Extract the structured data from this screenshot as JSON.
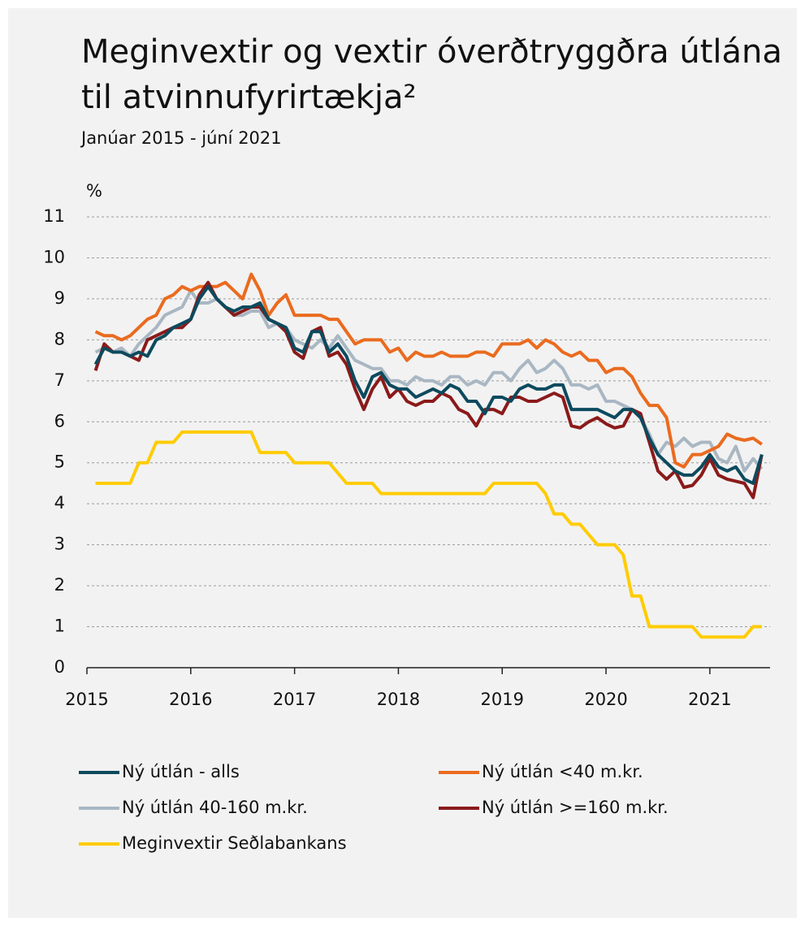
{
  "chart_data": {
    "type": "line",
    "title": "Meginvextir og vextir óverðtryggðra útlána til atvinnufyrirtækja²",
    "subtitle": "Janúar 2015 - júní 2021",
    "y_label": "%",
    "x": [
      2015.083,
      2015.167,
      2015.25,
      2015.333,
      2015.417,
      2015.5,
      2015.583,
      2015.667,
      2015.75,
      2015.833,
      2015.917,
      2016.0,
      2016.083,
      2016.167,
      2016.25,
      2016.333,
      2016.417,
      2016.5,
      2016.583,
      2016.667,
      2016.75,
      2016.833,
      2016.917,
      2017.0,
      2017.083,
      2017.167,
      2017.25,
      2017.333,
      2017.417,
      2017.5,
      2017.583,
      2017.667,
      2017.75,
      2017.833,
      2017.917,
      2018.0,
      2018.083,
      2018.167,
      2018.25,
      2018.333,
      2018.417,
      2018.5,
      2018.583,
      2018.667,
      2018.75,
      2018.833,
      2018.917,
      2019.0,
      2019.083,
      2019.167,
      2019.25,
      2019.333,
      2019.417,
      2019.5,
      2019.583,
      2019.667,
      2019.75,
      2019.833,
      2019.917,
      2020.0,
      2020.083,
      2020.167,
      2020.25,
      2020.333,
      2020.417,
      2020.5,
      2020.583,
      2020.667,
      2020.75,
      2020.833,
      2020.917,
      2021.0,
      2021.083,
      2021.167,
      2021.25,
      2021.333,
      2021.417,
      2021.5
    ],
    "xlim": [
      2015,
      2021.58
    ],
    "xticks": [
      2015,
      2016,
      2017,
      2018,
      2019,
      2020,
      2021
    ],
    "ylim": [
      0,
      11
    ],
    "yticks": [
      0,
      1,
      2,
      3,
      4,
      5,
      6,
      7,
      8,
      9,
      10,
      11
    ],
    "grid": true,
    "series": [
      {
        "name": "Ný útlán - alls",
        "color": "#0d4a5e",
        "values": [
          7.4,
          7.8,
          7.7,
          7.7,
          7.6,
          7.7,
          7.6,
          8.0,
          8.1,
          8.3,
          8.4,
          8.5,
          9.0,
          9.3,
          9.0,
          8.8,
          8.7,
          8.8,
          8.8,
          8.9,
          8.5,
          8.4,
          8.3,
          7.8,
          7.7,
          8.2,
          8.2,
          7.7,
          7.9,
          7.6,
          7.0,
          6.6,
          7.1,
          7.2,
          6.9,
          6.8,
          6.8,
          6.6,
          6.7,
          6.8,
          6.7,
          6.9,
          6.8,
          6.5,
          6.5,
          6.2,
          6.6,
          6.6,
          6.5,
          6.8,
          6.9,
          6.8,
          6.8,
          6.9,
          6.9,
          6.3,
          6.3,
          6.3,
          6.3,
          6.2,
          6.1,
          6.3,
          6.3,
          6.1,
          5.6,
          5.2,
          5.0,
          4.8,
          4.7,
          4.7,
          4.9,
          5.2,
          4.9,
          4.8,
          4.9,
          4.6,
          4.5,
          5.2
        ]
      },
      {
        "name": "Ný útlán <40 m.kr.",
        "color": "#ea6b1f",
        "values": [
          8.2,
          8.1,
          8.1,
          8.0,
          8.1,
          8.3,
          8.5,
          8.6,
          9.0,
          9.1,
          9.3,
          9.2,
          9.3,
          9.3,
          9.3,
          9.4,
          9.2,
          9.0,
          9.6,
          9.2,
          8.6,
          8.9,
          9.1,
          8.6,
          8.6,
          8.6,
          8.6,
          8.5,
          8.5,
          8.2,
          7.9,
          8.0,
          8.0,
          8.0,
          7.7,
          7.8,
          7.5,
          7.7,
          7.6,
          7.6,
          7.7,
          7.6,
          7.6,
          7.6,
          7.7,
          7.7,
          7.6,
          7.9,
          7.9,
          7.9,
          8.0,
          7.8,
          8.0,
          7.9,
          7.7,
          7.6,
          7.7,
          7.5,
          7.5,
          7.2,
          7.3,
          7.3,
          7.1,
          6.7,
          6.4,
          6.4,
          6.1,
          5.0,
          4.9,
          5.2,
          5.2,
          5.3,
          5.4,
          5.7,
          5.6,
          5.55,
          5.6,
          5.45
        ]
      },
      {
        "name": "Ný útlán 40-160 m.kr.",
        "color": "#a9b7c3",
        "values": [
          7.7,
          7.8,
          7.7,
          7.8,
          7.6,
          7.9,
          8.1,
          8.3,
          8.6,
          8.7,
          8.8,
          9.2,
          8.9,
          8.9,
          9.0,
          8.8,
          8.6,
          8.6,
          8.7,
          8.7,
          8.3,
          8.4,
          8.3,
          8.0,
          7.9,
          7.8,
          8.0,
          7.8,
          8.1,
          7.8,
          7.5,
          7.4,
          7.3,
          7.3,
          7.0,
          7.0,
          6.9,
          7.1,
          7.0,
          7.0,
          6.9,
          7.1,
          7.1,
          6.9,
          7.0,
          6.9,
          7.2,
          7.2,
          7.0,
          7.3,
          7.5,
          7.2,
          7.3,
          7.5,
          7.3,
          6.9,
          6.9,
          6.8,
          6.9,
          6.5,
          6.5,
          6.4,
          6.3,
          6.1,
          5.7,
          5.2,
          5.5,
          5.4,
          5.6,
          5.4,
          5.5,
          5.5,
          5.1,
          5.0,
          5.4,
          4.8,
          5.1,
          4.85
        ]
      },
      {
        "name": "Ný útlán >=160 m.kr.",
        "color": "#8b1a1a",
        "values": [
          7.25,
          7.9,
          7.7,
          7.7,
          7.6,
          7.5,
          8.0,
          8.1,
          8.2,
          8.3,
          8.3,
          8.5,
          9.1,
          9.4,
          9.0,
          8.8,
          8.6,
          8.7,
          8.8,
          8.8,
          8.5,
          8.4,
          8.2,
          7.7,
          7.55,
          8.2,
          8.3,
          7.6,
          7.7,
          7.4,
          6.8,
          6.3,
          6.8,
          7.1,
          6.6,
          6.8,
          6.5,
          6.4,
          6.5,
          6.5,
          6.7,
          6.6,
          6.3,
          6.2,
          5.9,
          6.3,
          6.3,
          6.2,
          6.6,
          6.6,
          6.5,
          6.5,
          6.6,
          6.7,
          6.6,
          5.9,
          5.85,
          6.0,
          6.1,
          5.95,
          5.85,
          5.9,
          6.3,
          6.2,
          5.5,
          4.8,
          4.6,
          4.8,
          4.4,
          4.45,
          4.7,
          5.1,
          4.7,
          4.6,
          4.55,
          4.5,
          4.15,
          5.2
        ]
      },
      {
        "name": "Meginvextir Seðlabankans",
        "color": "#ffcc00",
        "values": [
          4.5,
          4.5,
          4.5,
          4.5,
          4.5,
          5.0,
          5.0,
          5.5,
          5.5,
          5.5,
          5.75,
          5.75,
          5.75,
          5.75,
          5.75,
          5.75,
          5.75,
          5.75,
          5.75,
          5.25,
          5.25,
          5.25,
          5.25,
          5.0,
          5.0,
          5.0,
          5.0,
          5.0,
          4.75,
          4.5,
          4.5,
          4.5,
          4.5,
          4.25,
          4.25,
          4.25,
          4.25,
          4.25,
          4.25,
          4.25,
          4.25,
          4.25,
          4.25,
          4.25,
          4.25,
          4.25,
          4.5,
          4.5,
          4.5,
          4.5,
          4.5,
          4.5,
          4.25,
          3.75,
          3.75,
          3.5,
          3.5,
          3.25,
          3.0,
          3.0,
          3.0,
          2.75,
          1.75,
          1.75,
          1.0,
          1.0,
          1.0,
          1.0,
          1.0,
          1.0,
          0.75,
          0.75,
          0.75,
          0.75,
          0.75,
          0.75,
          1.0,
          1.0
        ]
      }
    ]
  }
}
